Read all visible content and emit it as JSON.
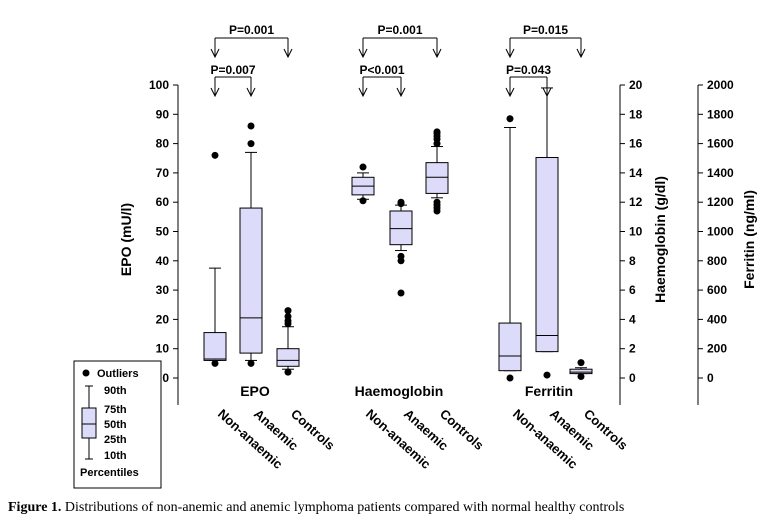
{
  "caption": {
    "label": "Figure 1.",
    "text": "Distributions of non-anemic and anemic lymphoma patients compared with normal healthy controls"
  },
  "legend": {
    "outliers": "Outliers",
    "p90": "90th",
    "p75": "75th",
    "p50": "50th",
    "p25": "25th",
    "p10": "10th",
    "percentiles": "Percentiles"
  },
  "chart_data": {
    "type": "box",
    "box_fill": "#dcdcfa",
    "axes": {
      "epo": {
        "label": "EPO (mU/l)",
        "range": [
          0,
          100
        ],
        "ticks": [
          0,
          10,
          20,
          30,
          40,
          50,
          60,
          70,
          80,
          90,
          100
        ]
      },
      "haemoglobin": {
        "label": "Haemoglobin (g/dl)",
        "range": [
          0,
          20
        ],
        "ticks": [
          0,
          2,
          4,
          6,
          8,
          10,
          12,
          14,
          16,
          18,
          20
        ]
      },
      "ferritin": {
        "label": "Ferritin (ng/ml)",
        "range": [
          0,
          2000
        ],
        "ticks": [
          0,
          200,
          400,
          600,
          800,
          1000,
          1200,
          1400,
          1600,
          1800,
          2000
        ]
      }
    },
    "groups": [
      {
        "name": "EPO",
        "axis": "epo",
        "comparisons": [
          {
            "label": "P=0.001",
            "from": 0,
            "to": 2
          },
          {
            "label": "P=0.007",
            "from": 0,
            "to": 1
          }
        ],
        "boxes": [
          {
            "category": "Non-anaemic",
            "p10": 6,
            "p25": 6,
            "median": 6.5,
            "p75": 15.5,
            "p90": 37.5,
            "outliers": [
              5,
              76
            ]
          },
          {
            "category": "Anaemic",
            "p10": 6,
            "p25": 8.5,
            "median": 20.5,
            "p75": 58,
            "p90": 77,
            "outliers": [
              5,
              80,
              86
            ]
          },
          {
            "category": "Controls",
            "p10": 3,
            "p25": 4,
            "median": 6,
            "p75": 10,
            "p90": 17.5,
            "outliers": [
              2,
              18.5,
              19.5,
              21,
              23
            ]
          }
        ]
      },
      {
        "name": "Haemoglobin",
        "axis": "haemoglobin",
        "comparisons": [
          {
            "label": "P=0.001",
            "from": 0,
            "to": 2
          },
          {
            "label": "P<0.001",
            "from": 0,
            "to": 1
          }
        ],
        "boxes": [
          {
            "category": "Non-anaemic",
            "p10": 12.2,
            "p25": 12.5,
            "median": 13.1,
            "p75": 13.7,
            "p90": 14.0,
            "outliers": [
              12.1,
              14.4
            ]
          },
          {
            "category": "Anaemic",
            "p10": 8.7,
            "p25": 9.1,
            "median": 10.2,
            "p75": 11.4,
            "p90": 11.8,
            "outliers": [
              5.8,
              8.0,
              8.3,
              11.9,
              12.0
            ]
          },
          {
            "category": "Controls",
            "p10": 12.3,
            "p25": 12.6,
            "median": 13.7,
            "p75": 14.7,
            "p90": 15.8,
            "outliers": [
              11.4,
              11.6,
              11.8,
              12.0,
              16.0,
              16.3,
              16.5,
              16.7,
              16.8
            ]
          }
        ]
      },
      {
        "name": "Ferritin",
        "axis": "ferritin",
        "comparisons": [
          {
            "label": "P=0.015",
            "from": 0,
            "to": 2
          },
          {
            "label": "P=0.043",
            "from": 0,
            "to": 1
          }
        ],
        "boxes": [
          {
            "category": "Non-anaemic",
            "p10": 50,
            "p25": 50,
            "median": 150,
            "p75": 375,
            "p90": 1710,
            "outliers": [
              0,
              1770
            ]
          },
          {
            "category": "Anaemic",
            "p10": 180,
            "p25": 180,
            "median": 290,
            "p75": 1505,
            "p90": 1980,
            "outliers": [
              20
            ]
          },
          {
            "category": "Controls",
            "p10": 30,
            "p25": 30,
            "median": 40,
            "p75": 60,
            "p90": 70,
            "outliers": [
              10,
              105
            ]
          }
        ]
      }
    ]
  }
}
